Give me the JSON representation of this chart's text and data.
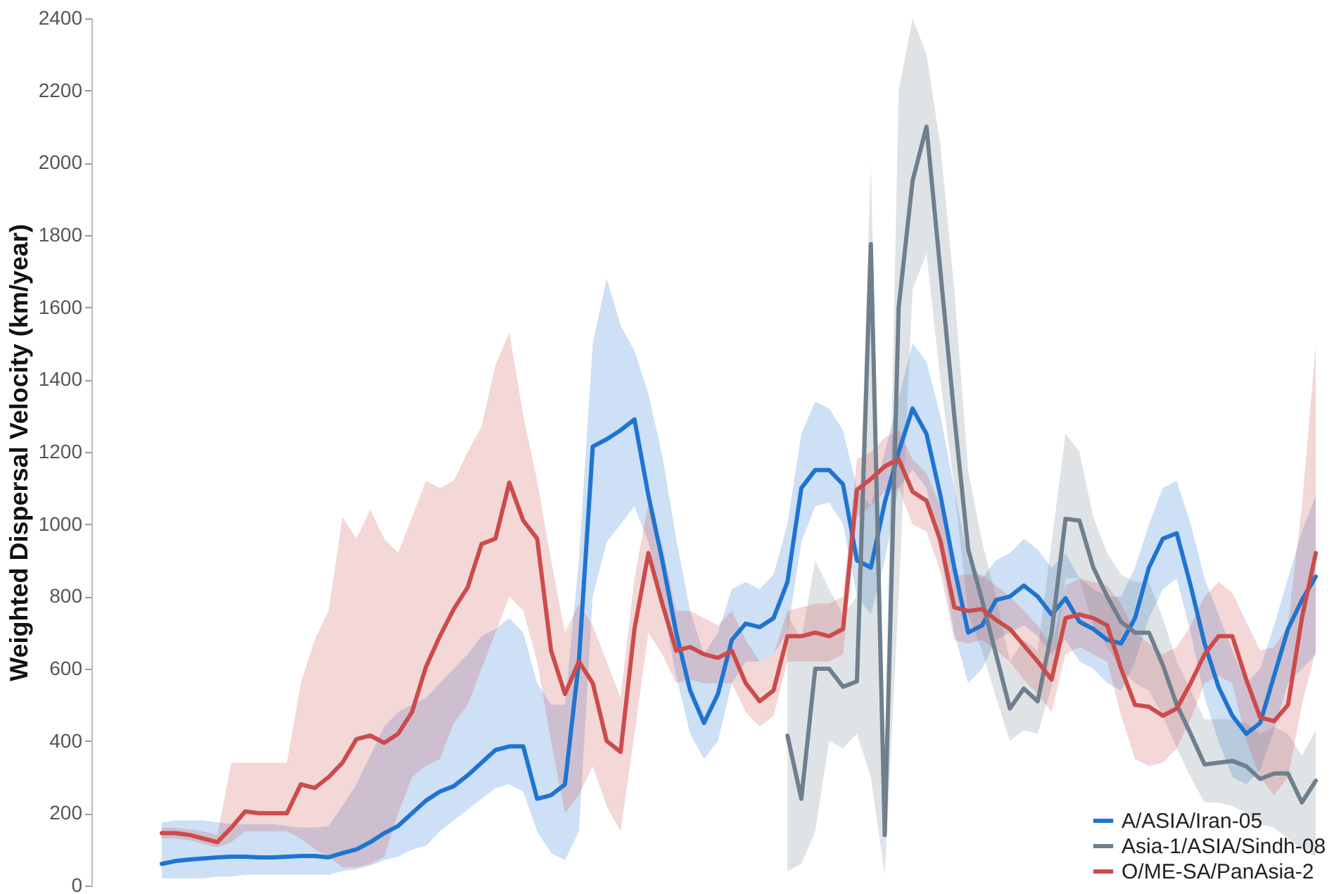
{
  "chart_data": {
    "type": "line",
    "ylabel": "Weighted Dispersal Velocity (km/year)",
    "ylim": [
      0,
      2400
    ],
    "yticks": [
      0,
      200,
      400,
      600,
      800,
      1000,
      1200,
      1400,
      1600,
      1800,
      2000,
      2200,
      2400
    ],
    "tick_labels": "y",
    "legend": "bottom right",
    "categories": [
      null,
      null,
      null,
      null,
      null,
      null,
      null,
      null,
      null,
      null,
      null,
      null,
      null,
      null,
      null,
      null,
      null,
      null,
      null,
      null,
      null,
      null,
      null,
      null,
      null,
      null,
      null,
      null,
      null,
      null,
      null,
      null,
      null,
      null,
      null,
      null,
      null,
      null,
      null,
      null,
      null,
      null,
      null,
      null,
      null,
      null,
      null,
      null,
      null,
      null,
      null,
      null,
      null,
      null,
      null,
      null,
      null,
      null,
      null,
      null,
      null,
      null,
      null,
      null,
      null,
      null,
      null,
      null,
      null,
      null,
      null,
      null,
      null,
      null,
      null,
      null,
      null,
      null,
      null,
      null,
      null,
      null,
      null,
      null
    ],
    "series": [
      {
        "name": "A/ASIA/Iran-05",
        "color": "#1f74d0",
        "values": [
          60,
          68,
          72,
          75,
          78,
          80,
          80,
          78,
          78,
          80,
          82,
          82,
          78,
          90,
          100,
          120,
          145,
          165,
          200,
          235,
          260,
          275,
          305,
          340,
          375,
          385,
          385,
          240,
          250,
          280,
          620,
          1215,
          1235,
          1260,
          1290,
          1080,
          900,
          700,
          540,
          450,
          530,
          680,
          725,
          715,
          740,
          840,
          1100,
          1150,
          1150,
          1110,
          900,
          880,
          1060,
          1200,
          1320,
          1250,
          1080,
          880,
          700,
          720,
          790,
          800,
          830,
          800,
          750,
          795,
          730,
          710,
          680,
          670,
          740,
          880,
          960,
          975,
          830,
          670,
          550,
          470,
          420,
          450,
          580,
          710,
          790,
          855
        ],
        "lower": [
          20,
          20,
          20,
          20,
          25,
          25,
          30,
          30,
          30,
          30,
          30,
          30,
          30,
          40,
          45,
          55,
          70,
          80,
          100,
          110,
          150,
          180,
          210,
          240,
          270,
          280,
          260,
          150,
          90,
          70,
          150,
          800,
          950,
          1000,
          1050,
          950,
          780,
          580,
          420,
          350,
          400,
          560,
          620,
          620,
          640,
          700,
          950,
          1050,
          1060,
          1000,
          800,
          750,
          900,
          1100,
          1150,
          1100,
          920,
          700,
          560,
          600,
          680,
          700,
          720,
          690,
          640,
          680,
          620,
          600,
          560,
          540,
          620,
          740,
          820,
          850,
          700,
          520,
          400,
          300,
          280,
          320,
          430,
          560,
          600,
          640
        ],
        "upper": [
          175,
          180,
          180,
          180,
          175,
          170,
          170,
          170,
          170,
          165,
          160,
          160,
          165,
          220,
          280,
          360,
          440,
          480,
          500,
          520,
          560,
          600,
          640,
          690,
          710,
          740,
          700,
          560,
          500,
          500,
          900,
          1500,
          1680,
          1550,
          1480,
          1360,
          1190,
          960,
          760,
          640,
          700,
          820,
          840,
          820,
          860,
          1000,
          1250,
          1340,
          1320,
          1260,
          1100,
          1050,
          1200,
          1350,
          1500,
          1450,
          1300,
          1100,
          900,
          850,
          900,
          920,
          960,
          930,
          880,
          920,
          850,
          820,
          800,
          800,
          880,
          1000,
          1100,
          1120,
          1000,
          850,
          750,
          650,
          560,
          600,
          720,
          850,
          980,
          1080
        ]
      },
      {
        "name": "Asia-1/ASIA/Sindh-08",
        "color": "#6f7f8d",
        "values": [
          null,
          null,
          null,
          null,
          null,
          null,
          null,
          null,
          null,
          null,
          null,
          null,
          null,
          null,
          null,
          null,
          null,
          null,
          null,
          null,
          null,
          null,
          null,
          null,
          null,
          null,
          null,
          null,
          null,
          null,
          null,
          null,
          null,
          null,
          null,
          null,
          null,
          null,
          null,
          null,
          null,
          null,
          null,
          null,
          null,
          415,
          240,
          600,
          600,
          550,
          565,
          1775,
          140,
          1600,
          1950,
          2100,
          1700,
          1300,
          930,
          790,
          640,
          490,
          545,
          510,
          700,
          1015,
          1010,
          880,
          800,
          730,
          700,
          700,
          610,
          500,
          420,
          335,
          340,
          345,
          330,
          295,
          310,
          310,
          230,
          290
        ],
        "lower": [
          null,
          null,
          null,
          null,
          null,
          null,
          null,
          null,
          null,
          null,
          null,
          null,
          null,
          null,
          null,
          null,
          null,
          null,
          null,
          null,
          null,
          null,
          null,
          null,
          null,
          null,
          null,
          null,
          null,
          null,
          null,
          null,
          null,
          null,
          null,
          null,
          null,
          null,
          null,
          null,
          null,
          null,
          null,
          null,
          null,
          40,
          60,
          150,
          400,
          380,
          420,
          300,
          30,
          800,
          1650,
          1750,
          1400,
          1100,
          750,
          650,
          520,
          400,
          430,
          420,
          550,
          850,
          850,
          720,
          660,
          600,
          560,
          540,
          470,
          380,
          300,
          230,
          230,
          220,
          200,
          170,
          160,
          130,
          100,
          80
        ],
        "upper": [
          null,
          null,
          null,
          null,
          null,
          null,
          null,
          null,
          null,
          null,
          null,
          null,
          null,
          null,
          null,
          null,
          null,
          null,
          null,
          null,
          null,
          null,
          null,
          null,
          null,
          null,
          null,
          null,
          null,
          null,
          null,
          null,
          null,
          null,
          null,
          null,
          null,
          null,
          null,
          null,
          null,
          null,
          null,
          null,
          null,
          750,
          680,
          900,
          820,
          750,
          800,
          2000,
          350,
          2200,
          2400,
          2300,
          2050,
          1650,
          1150,
          950,
          800,
          620,
          680,
          650,
          950,
          1250,
          1200,
          1020,
          920,
          860,
          840,
          840,
          740,
          620,
          540,
          460,
          460,
          460,
          450,
          420,
          440,
          420,
          360,
          430
        ]
      },
      {
        "name": "O/ME-SA/PanAsia-2",
        "color": "#cc4b4b",
        "values": [
          145,
          145,
          140,
          130,
          120,
          160,
          205,
          200,
          200,
          200,
          280,
          270,
          300,
          340,
          405,
          415,
          395,
          420,
          480,
          605,
          690,
          765,
          825,
          945,
          960,
          1115,
          1010,
          960,
          650,
          530,
          620,
          560,
          400,
          370,
          710,
          920,
          780,
          650,
          660,
          640,
          630,
          650,
          560,
          510,
          540,
          690,
          690,
          700,
          690,
          710,
          1095,
          1125,
          1160,
          1180,
          1090,
          1065,
          955,
          770,
          760,
          765,
          735,
          710,
          665,
          620,
          570,
          740,
          750,
          740,
          720,
          600,
          500,
          495,
          470,
          490,
          560,
          640,
          690,
          690,
          570,
          465,
          455,
          500,
          740,
          920
        ],
        "lower": [
          130,
          130,
          125,
          115,
          105,
          120,
          150,
          150,
          150,
          150,
          130,
          100,
          80,
          50,
          50,
          60,
          80,
          200,
          300,
          330,
          350,
          450,
          500,
          600,
          700,
          800,
          760,
          620,
          400,
          200,
          250,
          330,
          220,
          150,
          420,
          700,
          640,
          560,
          570,
          560,
          560,
          560,
          480,
          440,
          470,
          620,
          620,
          620,
          620,
          640,
          1020,
          1050,
          1090,
          1100,
          1000,
          980,
          870,
          680,
          670,
          680,
          650,
          620,
          570,
          530,
          480,
          640,
          660,
          640,
          620,
          470,
          350,
          330,
          340,
          380,
          460,
          560,
          580,
          560,
          400,
          300,
          250,
          300,
          500,
          650
        ],
        "upper": [
          160,
          160,
          155,
          150,
          140,
          340,
          340,
          340,
          340,
          340,
          560,
          680,
          760,
          1020,
          960,
          1040,
          960,
          920,
          1020,
          1120,
          1100,
          1120,
          1200,
          1270,
          1440,
          1530,
          1300,
          1120,
          900,
          700,
          780,
          720,
          620,
          520,
          850,
          1060,
          940,
          760,
          760,
          740,
          720,
          760,
          680,
          620,
          640,
          760,
          770,
          780,
          780,
          800,
          1180,
          1200,
          1240,
          1260,
          1180,
          1140,
          1050,
          860,
          860,
          860,
          830,
          800,
          760,
          720,
          660,
          830,
          850,
          840,
          830,
          780,
          700,
          670,
          640,
          660,
          720,
          800,
          840,
          810,
          730,
          650,
          660,
          720,
          1050,
          1500
        ]
      }
    ]
  }
}
